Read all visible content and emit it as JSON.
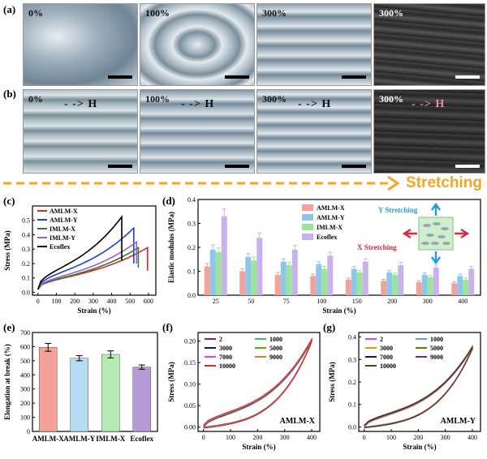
{
  "panels": {
    "a": "(a)",
    "b": "(b)",
    "c": "(c)",
    "d": "(d)",
    "e": "(e)",
    "f": "(f)",
    "g": "(g)"
  },
  "row_a": [
    {
      "label": "0%"
    },
    {
      "label": "100%"
    },
    {
      "label": "300%"
    },
    {
      "label": "300%"
    }
  ],
  "row_b": [
    {
      "label": "0%",
      "field": "H"
    },
    {
      "label": "100%",
      "field": "H"
    },
    {
      "label": "300%",
      "field": "H"
    },
    {
      "label": "300%",
      "field": "H"
    }
  ],
  "stretching_label": "Stretching",
  "colors": {
    "accent": "#f5a623",
    "AMLM-X": "#e8242a",
    "AMLM-Y": "#1f3fd6",
    "IMLM-X": "#2e7d32",
    "IMLM-Y": "#9c5fc9",
    "Ecoflex": "#000000"
  },
  "chart_data": [
    {
      "id": "c",
      "type": "line",
      "xlabel": "Strain (%)",
      "ylabel": "Stress (MPa)",
      "xlim": [
        -30,
        640
      ],
      "ylim": [
        -0.02,
        0.6
      ],
      "xticks": [
        0,
        100,
        200,
        300,
        400,
        500,
        600
      ],
      "yticks": [
        0.0,
        0.1,
        0.2,
        0.3,
        0.4,
        0.5
      ],
      "series": [
        {
          "name": "AMLM-X",
          "color": "#e8242a",
          "break_strain": 595,
          "break_stress": 0.3,
          "drop_to": 0.15
        },
        {
          "name": "AMLM-Y",
          "color": "#1f3fd6",
          "break_strain": 520,
          "break_stress": 0.44,
          "drop_to": 0.2
        },
        {
          "name": "IMLM-X",
          "color": "#2e7d32",
          "break_strain": 545,
          "break_stress": 0.3,
          "drop_to": 0.17
        },
        {
          "name": "IMLM-Y",
          "color": "#9c5fc9",
          "break_strain": 535,
          "break_stress": 0.34,
          "drop_to": 0.2
        },
        {
          "name": "Ecoflex",
          "color": "#000000",
          "break_strain": 455,
          "break_stress": 0.52,
          "drop_to": 0.22
        }
      ]
    },
    {
      "id": "d",
      "type": "bar",
      "xlabel": "Strain (%)",
      "ylabel": "Elastic modulus (MPa)",
      "ylim": [
        0,
        0.4
      ],
      "yticks": [
        0.0,
        0.1,
        0.2,
        0.3,
        0.4
      ],
      "categories": [
        "25",
        "50",
        "75",
        "100",
        "150",
        "200",
        "300",
        "400"
      ],
      "series": [
        {
          "name": "AMLM-X",
          "color": "#f3a19a",
          "values": [
            0.12,
            0.1,
            0.085,
            0.08,
            0.065,
            0.06,
            0.055,
            0.05
          ],
          "errors": [
            0.012,
            0.01,
            0.01,
            0.008,
            0.007,
            0.006,
            0.006,
            0.006
          ]
        },
        {
          "name": "AMLM-Y",
          "color": "#8cc7ea",
          "values": [
            0.19,
            0.16,
            0.14,
            0.13,
            0.11,
            0.095,
            0.085,
            0.08
          ],
          "errors": [
            0.02,
            0.015,
            0.012,
            0.01,
            0.01,
            0.008,
            0.008,
            0.008
          ]
        },
        {
          "name": "IMLM-X",
          "color": "#9ee39a",
          "values": [
            0.18,
            0.145,
            0.125,
            0.11,
            0.095,
            0.085,
            0.075,
            0.065
          ],
          "errors": [
            0.018,
            0.015,
            0.012,
            0.01,
            0.008,
            0.008,
            0.007,
            0.007
          ]
        },
        {
          "name": "Ecoflex",
          "color": "#c9b2ea",
          "values": [
            0.33,
            0.24,
            0.19,
            0.165,
            0.14,
            0.125,
            0.115,
            0.11
          ],
          "errors": [
            0.03,
            0.02,
            0.018,
            0.015,
            0.012,
            0.012,
            0.01,
            0.01
          ]
        }
      ],
      "annotations": {
        "y_stretch": "Y Stretching",
        "x_stretch": "X Stretching"
      }
    },
    {
      "id": "e",
      "type": "bar",
      "xlabel": "",
      "ylabel": "Elongation at break (%)",
      "ylim": [
        0,
        700
      ],
      "yticks": [
        0,
        100,
        200,
        300,
        400,
        500,
        600,
        700
      ],
      "categories": [
        "AMLM-X",
        "AMLM-Y",
        "IMLM-X",
        "Ecoflex"
      ],
      "values": [
        595,
        518,
        545,
        455
      ],
      "errors": [
        28,
        18,
        25,
        15
      ],
      "colors": [
        "#f3a19a",
        "#b5dcf2",
        "#b6ecb3",
        "#b69ad6"
      ]
    },
    {
      "id": "f",
      "type": "line",
      "title": "AMLM-X",
      "xlabel": "Strain (%)",
      "ylabel": "Stress (MPa)",
      "xlim": [
        -20,
        430
      ],
      "ylim": [
        -0.01,
        0.22
      ],
      "xticks": [
        0,
        100,
        200,
        300,
        400
      ],
      "yticks": [
        0.0,
        0.05,
        0.1,
        0.15,
        0.2
      ],
      "peak_stress": 0.2,
      "cycles": [
        "2",
        "1000",
        "3000",
        "5000",
        "7000",
        "9000",
        "10000"
      ],
      "cycle_colors": [
        "#7a1fa2",
        "#27c46c",
        "#12127a",
        "#5fa800",
        "#e040fb",
        "#f07a19",
        "#e8242a"
      ]
    },
    {
      "id": "g",
      "type": "line",
      "title": "AMLM-Y",
      "xlabel": "Strain (%)",
      "ylabel": "Stress (MPa)",
      "xlim": [
        -20,
        430
      ],
      "ylim": [
        -0.02,
        0.42
      ],
      "xticks": [
        0,
        100,
        200,
        300,
        400
      ],
      "yticks": [
        0.0,
        0.1,
        0.2,
        0.3,
        0.4
      ],
      "peak_stress": 0.35,
      "cycles": [
        "2",
        "1000",
        "3000",
        "5000",
        "7000",
        "9000",
        "10000"
      ],
      "cycle_colors": [
        "#e040fb",
        "#4aa8e8",
        "#c5a600",
        "#5a7a00",
        "#12127a",
        "#7a1fa2",
        "#6b3b00"
      ]
    }
  ]
}
